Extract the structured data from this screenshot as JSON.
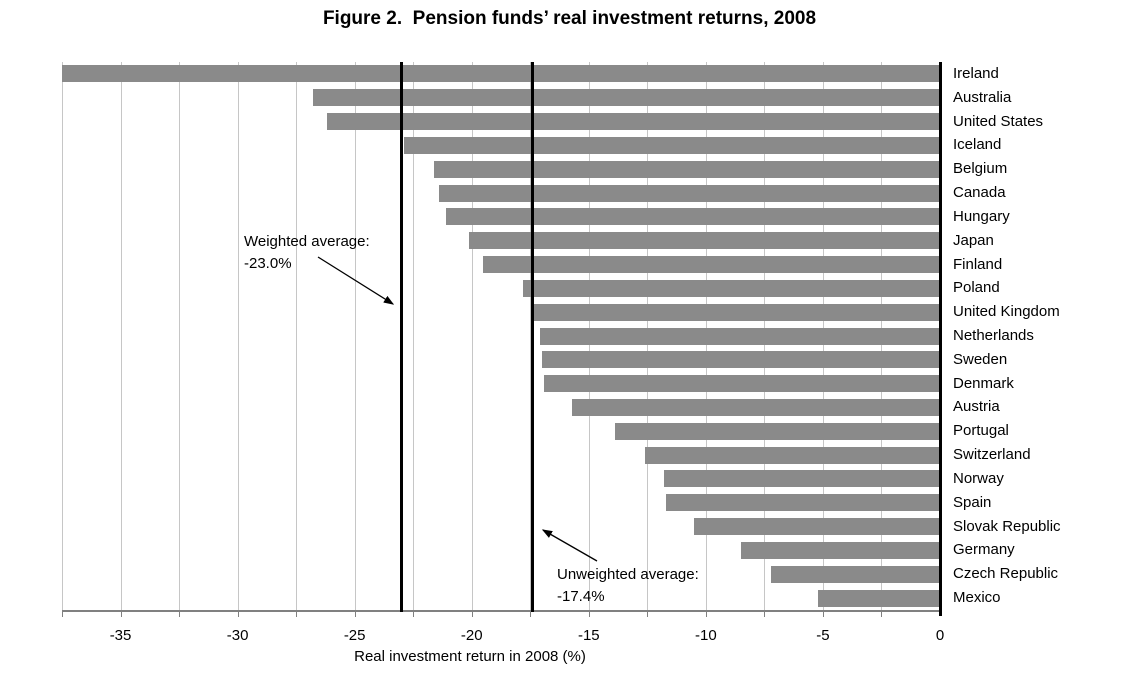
{
  "chart_data": {
    "type": "bar",
    "orientation": "horizontal",
    "title": "Figure 2.  Pension funds’ real investment returns, 2008",
    "xlabel": "Real investment return in 2008 (%)",
    "xlim": [
      -37.5,
      0
    ],
    "xticks": [
      -35,
      -30,
      -25,
      -20,
      -15,
      -10,
      -5,
      0
    ],
    "gridline_step": 2.5,
    "grid": true,
    "legend": "none",
    "categories": [
      "Ireland",
      "Australia",
      "United States",
      "Iceland",
      "Belgium",
      "Canada",
      "Hungary",
      "Japan",
      "Finland",
      "Poland",
      "United Kingdom",
      "Netherlands",
      "Sweden",
      "Denmark",
      "Austria",
      "Portugal",
      "Switzerland",
      "Norway",
      "Spain",
      "Slovak Republic",
      "Germany",
      "Czech Republic",
      "Mexico"
    ],
    "values": [
      -37.5,
      -26.8,
      -26.2,
      -22.9,
      -21.6,
      -21.4,
      -21.1,
      -20.1,
      -19.5,
      -17.8,
      -17.4,
      -17.1,
      -17.0,
      -16.9,
      -15.7,
      -13.9,
      -12.6,
      -11.8,
      -11.7,
      -10.5,
      -8.5,
      -7.2,
      -5.2
    ],
    "reference_lines": [
      {
        "name": "weighted-average",
        "label": "Weighted average:",
        "value_text": "-23.0%",
        "value": -23.0
      },
      {
        "name": "unweighted-average",
        "label": "Unweighted average:",
        "value_text": "-17.4%",
        "value": -17.4
      }
    ],
    "colors": {
      "bar": "#8a8a8a",
      "gridline": "#c6c6c6",
      "axis_zero": "#000000",
      "axis_bottom": "#808080",
      "text": "#000000"
    }
  }
}
